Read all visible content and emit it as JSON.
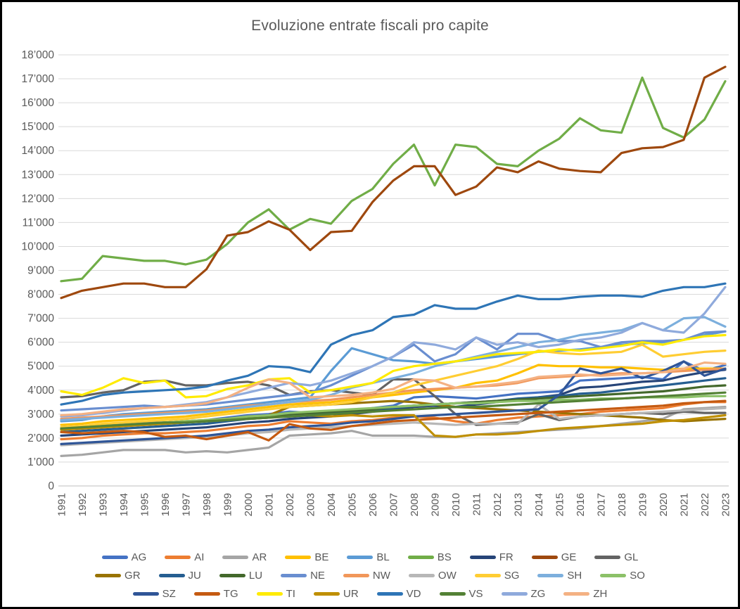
{
  "title": "Evoluzione entrate fiscali pro capite",
  "colors": {
    "title_text": "#595959",
    "tick_text": "#595959",
    "gridline": "#D9D9D9",
    "axis_line": "#BFBFBF",
    "background": "#FFFFFF",
    "frame_border": "#000000"
  },
  "chart_data": {
    "type": "line",
    "title": "Evoluzione entrate fiscali pro capite",
    "xlabel": "",
    "ylabel": "",
    "ylim": [
      0,
      18000
    ],
    "y_tick_step": 1000,
    "y_tick_format": "thousands-apostrophe",
    "grid": true,
    "legend_position": "bottom",
    "legend_rows": [
      9,
      9,
      8
    ],
    "x": [
      1991,
      1992,
      1993,
      1994,
      1995,
      1996,
      1997,
      1998,
      1999,
      2000,
      2001,
      2002,
      2003,
      2004,
      2005,
      2006,
      2007,
      2008,
      2009,
      2010,
      2011,
      2012,
      2013,
      2014,
      2015,
      2016,
      2017,
      2018,
      2019,
      2020,
      2021,
      2022,
      2023
    ],
    "series": [
      {
        "name": "AG",
        "color": "#4472C4",
        "values": [
          2450,
          2500,
          2550,
          2600,
          2650,
          2650,
          2700,
          2750,
          2850,
          2950,
          3000,
          3100,
          3050,
          3100,
          3150,
          3250,
          3350,
          3700,
          3750,
          3700,
          3650,
          3750,
          3850,
          3900,
          3950,
          4400,
          4450,
          4500,
          4550,
          4450,
          5200,
          4800,
          5050
        ]
      },
      {
        "name": "AI",
        "color": "#ED7D31",
        "values": [
          1950,
          2000,
          2100,
          2150,
          2200,
          2200,
          2250,
          2300,
          2400,
          2500,
          2550,
          2700,
          2650,
          2600,
          2700,
          2750,
          2850,
          2900,
          2850,
          2700,
          2600,
          2750,
          2850,
          2900,
          2950,
          3000,
          3100,
          3150,
          3200,
          3250,
          3400,
          3500,
          3500
        ]
      },
      {
        "name": "AR",
        "color": "#A5A5A5",
        "values": [
          1250,
          1300,
          1400,
          1500,
          1500,
          1500,
          1400,
          1450,
          1400,
          1500,
          1600,
          2100,
          2150,
          2200,
          2300,
          2100,
          2100,
          2100,
          2050,
          2050,
          2150,
          2200,
          2250,
          2300,
          2350,
          2400,
          2500,
          2600,
          2700,
          2800,
          3200,
          3250,
          3300
        ]
      },
      {
        "name": "BE",
        "color": "#FFC000",
        "values": [
          2550,
          2600,
          2700,
          2750,
          2800,
          2850,
          2900,
          3000,
          3100,
          3200,
          3300,
          3400,
          3450,
          3500,
          3600,
          3700,
          3800,
          3900,
          4000,
          4100,
          4300,
          4400,
          4700,
          5050,
          5000,
          5000,
          4950,
          4950,
          4900,
          4850,
          4900,
          4900,
          4900
        ]
      },
      {
        "name": "BL",
        "color": "#5B9BD5",
        "values": [
          2700,
          2750,
          2900,
          3000,
          3050,
          3100,
          3150,
          3200,
          3300,
          3400,
          3500,
          3600,
          3700,
          4800,
          5750,
          5500,
          5250,
          5200,
          5100,
          5200,
          5300,
          5400,
          5500,
          5600,
          5650,
          5700,
          5800,
          5900,
          5950,
          6000,
          6100,
          6300,
          6450
        ]
      },
      {
        "name": "BS",
        "color": "#70AD47",
        "values": [
          8550,
          8650,
          9600,
          9500,
          9400,
          9400,
          9250,
          9450,
          10100,
          11000,
          11550,
          10700,
          11150,
          10950,
          11900,
          12400,
          13450,
          14250,
          12550,
          14250,
          14150,
          13450,
          13350,
          14000,
          14500,
          15350,
          14850,
          14750,
          17050,
          14950,
          14550,
          15300,
          16900
        ]
      },
      {
        "name": "FR",
        "color": "#264478",
        "values": [
          2100,
          2150,
          2200,
          2250,
          2300,
          2350,
          2400,
          2450,
          2550,
          2650,
          2700,
          2800,
          2850,
          2900,
          3000,
          3100,
          3200,
          3300,
          3350,
          3300,
          3400,
          3500,
          3600,
          3700,
          3800,
          4100,
          4150,
          4250,
          4350,
          4400,
          4600,
          4750,
          4850
        ]
      },
      {
        "name": "GE",
        "color": "#9E480E",
        "values": [
          7850,
          8150,
          8300,
          8450,
          8450,
          8300,
          8300,
          9050,
          10450,
          10600,
          11050,
          10700,
          9850,
          10600,
          10650,
          11850,
          12750,
          13350,
          13350,
          12150,
          12500,
          13300,
          13100,
          13550,
          13250,
          13150,
          13100,
          13900,
          14100,
          14150,
          14450,
          17050,
          17500
        ]
      },
      {
        "name": "GL",
        "color": "#636363",
        "values": [
          3700,
          3750,
          3900,
          4000,
          4350,
          4400,
          4200,
          4200,
          4300,
          4350,
          4200,
          3800,
          3950,
          4000,
          3900,
          3800,
          4450,
          4450,
          3750,
          3000,
          2550,
          2600,
          2650,
          3000,
          2750,
          2900,
          2950,
          3000,
          3050,
          3000,
          3100,
          3050,
          3050
        ]
      },
      {
        "name": "GR",
        "color": "#997300",
        "values": [
          2400,
          2450,
          2500,
          2550,
          2600,
          2650,
          2700,
          2750,
          2800,
          2900,
          2950,
          3300,
          3350,
          3400,
          3450,
          3500,
          3550,
          3500,
          3400,
          3300,
          3250,
          3200,
          3150,
          3100,
          3050,
          3000,
          2950,
          2900,
          2850,
          2750,
          2700,
          2750,
          2800
        ]
      },
      {
        "name": "JU",
        "color": "#255E91",
        "values": [
          2250,
          2300,
          2350,
          2400,
          2450,
          2500,
          2550,
          2600,
          2700,
          2800,
          2850,
          2950,
          3000,
          3050,
          3100,
          3150,
          3250,
          3350,
          3400,
          3450,
          3500,
          3550,
          3650,
          3700,
          3750,
          3850,
          3900,
          4000,
          4100,
          4200,
          4300,
          4400,
          4500
        ]
      },
      {
        "name": "LU",
        "color": "#43682B",
        "values": [
          2350,
          2400,
          2450,
          2500,
          2550,
          2600,
          2650,
          2700,
          2750,
          2850,
          2900,
          3000,
          3050,
          3100,
          3150,
          3200,
          3300,
          3350,
          3400,
          3450,
          3500,
          3550,
          3600,
          3650,
          3700,
          3750,
          3800,
          3850,
          3900,
          3950,
          4050,
          4150,
          4200
        ]
      },
      {
        "name": "NE",
        "color": "#698ED0",
        "values": [
          3150,
          3200,
          3250,
          3300,
          3350,
          3300,
          3350,
          3400,
          3500,
          3600,
          3700,
          3800,
          3900,
          4200,
          4600,
          5000,
          5400,
          5900,
          5200,
          5500,
          6200,
          5700,
          6350,
          6350,
          6050,
          6050,
          5800,
          6000,
          6050,
          6050,
          6100,
          6400,
          6450
        ]
      },
      {
        "name": "NW",
        "color": "#F1975A",
        "values": [
          2800,
          2850,
          2900,
          2950,
          3000,
          3050,
          3100,
          3150,
          3250,
          3350,
          3400,
          3500,
          3550,
          3600,
          3700,
          3800,
          3900,
          4000,
          4050,
          4100,
          4150,
          4200,
          4300,
          4500,
          4550,
          4600,
          4650,
          4700,
          4700,
          4750,
          4800,
          4850,
          4900
        ]
      },
      {
        "name": "OW",
        "color": "#B7B7B7",
        "values": [
          1700,
          1750,
          1800,
          1850,
          1900,
          1950,
          2000,
          2050,
          2100,
          2200,
          2250,
          2350,
          2400,
          2450,
          2500,
          2550,
          2600,
          2650,
          2600,
          2550,
          2600,
          2600,
          2600,
          3400,
          2800,
          2900,
          2950,
          3000,
          3050,
          3100,
          3150,
          3200,
          3250
        ]
      },
      {
        "name": "SG",
        "color": "#FFCD33",
        "values": [
          2450,
          2500,
          2600,
          2650,
          2700,
          2750,
          2800,
          2900,
          3000,
          3100,
          3200,
          3300,
          3350,
          3400,
          3500,
          3700,
          3900,
          4200,
          4400,
          4600,
          4800,
          5000,
          5300,
          5650,
          5550,
          5500,
          5550,
          5600,
          5900,
          5400,
          5500,
          5600,
          5650
        ]
      },
      {
        "name": "SH",
        "color": "#7CAFDD",
        "values": [
          2750,
          2800,
          2850,
          2900,
          2950,
          3000,
          3050,
          3100,
          3200,
          3300,
          3400,
          3500,
          3600,
          3800,
          4100,
          4300,
          4500,
          4700,
          5000,
          5200,
          5400,
          5600,
          5800,
          6000,
          6100,
          6300,
          6400,
          6500,
          6800,
          6500,
          7000,
          7050,
          6650
        ]
      },
      {
        "name": "SO",
        "color": "#8CC168",
        "values": [
          2400,
          2450,
          2500,
          2550,
          2600,
          2650,
          2700,
          2750,
          2800,
          2900,
          2950,
          3050,
          3100,
          3150,
          3200,
          3250,
          3300,
          3350,
          3400,
          3450,
          3450,
          3500,
          3550,
          3550,
          3600,
          3600,
          3650,
          3650,
          3700,
          3700,
          3700,
          3750,
          3750
        ]
      },
      {
        "name": "SZ",
        "color": "#2F5597",
        "values": [
          1750,
          1800,
          1850,
          1900,
          1950,
          2000,
          2050,
          2100,
          2200,
          2300,
          2350,
          2450,
          2500,
          2550,
          2650,
          2700,
          2800,
          2900,
          2950,
          3000,
          3050,
          3100,
          3150,
          3200,
          3800,
          4900,
          4700,
          4900,
          4500,
          4800,
          5200,
          4600,
          4900
        ]
      },
      {
        "name": "TG",
        "color": "#C55A11",
        "values": [
          2250,
          2200,
          2250,
          2300,
          2250,
          2050,
          2100,
          1950,
          2100,
          2250,
          1900,
          2580,
          2400,
          2340,
          2500,
          2600,
          2700,
          2750,
          2800,
          2850,
          2900,
          2950,
          3000,
          3050,
          3100,
          3150,
          3200,
          3250,
          3300,
          3350,
          3450,
          3500,
          3550
        ]
      },
      {
        "name": "TI",
        "color": "#FFEB00",
        "values": [
          3950,
          3800,
          4100,
          4500,
          4300,
          4400,
          3700,
          3750,
          4050,
          4200,
          4450,
          4500,
          3900,
          4000,
          4150,
          4300,
          4800,
          5000,
          5100,
          5200,
          5350,
          5500,
          5550,
          5600,
          5700,
          5650,
          5750,
          5850,
          6000,
          5900,
          6100,
          6250,
          6300
        ]
      },
      {
        "name": "UR",
        "color": "#BF8F00",
        "values": [
          2350,
          2400,
          2450,
          2500,
          2550,
          2600,
          2650,
          2700,
          2750,
          2800,
          2850,
          2900,
          2950,
          2900,
          2950,
          2900,
          2950,
          2950,
          2100,
          2050,
          2150,
          2150,
          2200,
          2300,
          2400,
          2450,
          2500,
          2550,
          2600,
          2700,
          2750,
          2850,
          2950
        ]
      },
      {
        "name": "VD",
        "color": "#2E75B6",
        "values": [
          3400,
          3550,
          3800,
          3900,
          3950,
          4000,
          4050,
          4150,
          4400,
          4600,
          5000,
          4950,
          4750,
          5900,
          6300,
          6500,
          7050,
          7150,
          7550,
          7400,
          7400,
          7700,
          7950,
          7800,
          7800,
          7900,
          7950,
          7950,
          7900,
          8150,
          8300,
          8300,
          8450
        ]
      },
      {
        "name": "VS",
        "color": "#538135",
        "values": [
          2400,
          2450,
          2500,
          2550,
          2600,
          2650,
          2650,
          2700,
          2750,
          2800,
          2850,
          2900,
          2950,
          3000,
          3050,
          3100,
          3150,
          3200,
          3250,
          3300,
          3300,
          3350,
          3400,
          3450,
          3500,
          3550,
          3600,
          3650,
          3700,
          3750,
          3800,
          3850,
          3900
        ]
      },
      {
        "name": "ZG",
        "color": "#8FAADC",
        "values": [
          2900,
          2950,
          3050,
          3150,
          3250,
          3300,
          3400,
          3500,
          3700,
          3900,
          4100,
          4300,
          4200,
          4400,
          4700,
          5000,
          5400,
          6000,
          5900,
          5700,
          6200,
          5900,
          6000,
          5800,
          5900,
          6100,
          6200,
          6400,
          6800,
          6500,
          6400,
          7200,
          8300
        ]
      },
      {
        "name": "ZH",
        "color": "#F4B183",
        "values": [
          2950,
          3000,
          3100,
          3200,
          3250,
          3300,
          3350,
          3450,
          3700,
          4100,
          4450,
          4300,
          3700,
          3750,
          3800,
          3900,
          4050,
          4450,
          4400,
          4100,
          4150,
          4250,
          4350,
          4550,
          4600,
          4650,
          4600,
          4650,
          4700,
          4750,
          4900,
          5150,
          5100
        ]
      }
    ]
  }
}
